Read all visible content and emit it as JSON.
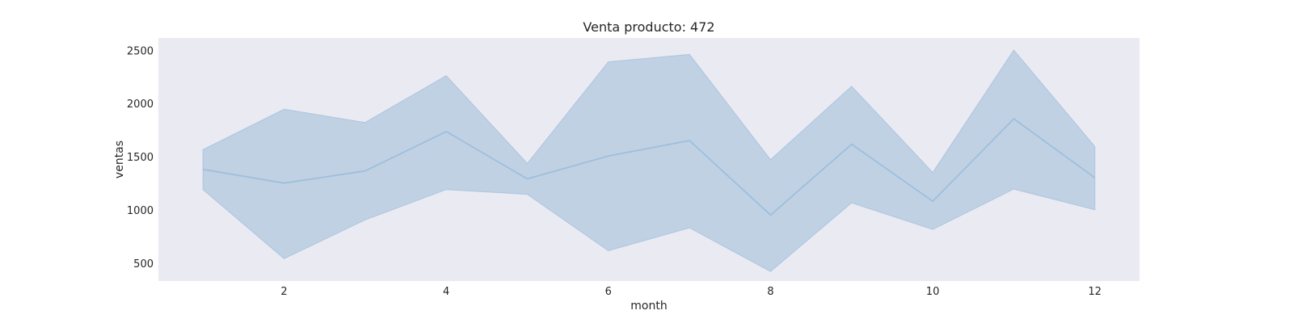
{
  "chart_data": {
    "type": "line",
    "title": "Venta producto: 472",
    "xlabel": "month",
    "ylabel": "ventas",
    "x": [
      1,
      2,
      3,
      4,
      5,
      6,
      7,
      8,
      9,
      10,
      11,
      12
    ],
    "series": [
      {
        "values": [
          1385,
          1255,
          1370,
          1740,
          1295,
          1510,
          1655,
          955,
          1620,
          1085,
          1860,
          1305
        ],
        "ci_low": [
          1195,
          545,
          910,
          1195,
          1150,
          620,
          835,
          425,
          1070,
          820,
          1200,
          1005
        ],
        "ci_high": [
          1570,
          1950,
          1825,
          2265,
          1440,
          2395,
          2465,
          1475,
          2165,
          1355,
          2505,
          1600
        ]
      }
    ],
    "xlim": [
      0.45,
      12.55
    ],
    "ylim": [
      335,
      2620
    ],
    "xticks": [
      2,
      4,
      6,
      8,
      10,
      12
    ],
    "yticks": [
      500,
      1000,
      1500,
      2000,
      2500
    ],
    "grid": false,
    "colors": {
      "plot_background": "#eaeaf2",
      "band": "#a3bfdb",
      "line": "#9ebfdb"
    }
  }
}
